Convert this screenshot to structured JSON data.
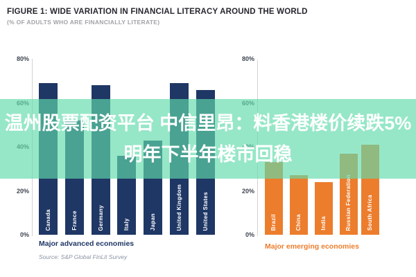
{
  "figure": {
    "title": "FIGURE 1: WIDE VARIATION IN FINANCIAL LITERACY AROUND THE WORLD",
    "subtitle": "(% OF ADULTS WHO ARE FINANCIALLY LITERATE)",
    "source": "Source: S&P Global FinLit Survey"
  },
  "overlay": {
    "line1": "温州股票配资平台 中信里昂：料香港楼价续跌5%",
    "line2": "明年下半年楼市回稳",
    "bg_rgba": "rgba(96,219,170,0.66)",
    "text_color": "#ffffff"
  },
  "chart_data": [
    {
      "type": "bar",
      "title": "Major advanced economies",
      "categories": [
        "Canada",
        "France",
        "Germany",
        "Italy",
        "Japan",
        "United Kingdom",
        "United States"
      ],
      "values": [
        69,
        52,
        68,
        36,
        43,
        69,
        66
      ],
      "ylim": [
        0,
        80
      ],
      "yticks": [
        0,
        20,
        40,
        60,
        80
      ],
      "ytick_suffix": "%",
      "grid": "off",
      "bar_color": "#1f3765",
      "bar_label_color": "#ffffff",
      "axis_title_color": "#1f3765"
    },
    {
      "type": "bar",
      "title": "Major emerging economies",
      "categories": [
        "Brazil",
        "China",
        "India",
        "Russian Federation",
        "South Africa"
      ],
      "values": [
        33,
        27,
        24,
        37,
        41
      ],
      "ylim": [
        0,
        80
      ],
      "yticks": [
        0,
        20,
        40,
        60,
        80
      ],
      "ytick_suffix": "%",
      "grid": "off",
      "bar_color": "#ec7d2d",
      "bar_label_color": "#ffffff",
      "axis_title_color": "#ec7d2d"
    }
  ],
  "colors": {
    "title_text": "#26262e",
    "subtitle_text": "#a2a2a8",
    "tick_text": "#3f4650",
    "axis_line": "#d2d2d4",
    "source_text": "#8b93a4",
    "overlay_mint": "#96e0c4",
    "advanced_bar": "#1f3765",
    "emerging_bar": "#ec7d2d"
  }
}
